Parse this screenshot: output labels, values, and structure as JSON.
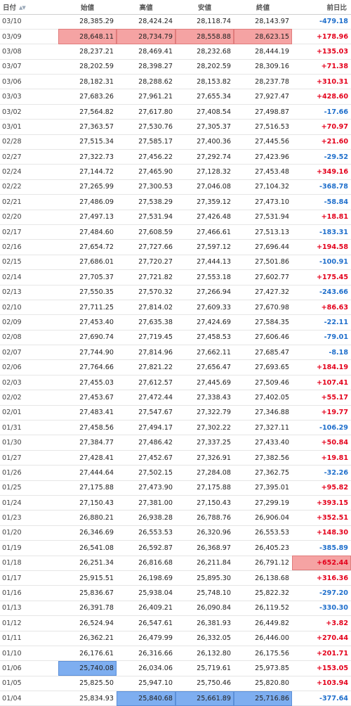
{
  "headers": {
    "date": "日付",
    "open": "始値",
    "high": "高値",
    "low": "安値",
    "close": "終値",
    "change": "前日比"
  },
  "colors": {
    "up": "#e4001b",
    "down": "#1e6ecb",
    "highlight_red": "#f5a3a3",
    "highlight_blue": "#7eaef0"
  },
  "rows": [
    {
      "date": "03/10",
      "open": "28,385.29",
      "high": "28,424.24",
      "low": "28,118.74",
      "close": "28,143.97",
      "change": "-479.18"
    },
    {
      "date": "03/09",
      "open": "28,648.11",
      "high": "28,734.79",
      "low": "28,558.88",
      "close": "28,623.15",
      "change": "+178.96",
      "hl": {
        "open": "red",
        "high": "red",
        "low": "red",
        "close": "red"
      }
    },
    {
      "date": "03/08",
      "open": "28,237.21",
      "high": "28,469.41",
      "low": "28,232.68",
      "close": "28,444.19",
      "change": "+135.03"
    },
    {
      "date": "03/07",
      "open": "28,202.59",
      "high": "28,398.27",
      "low": "28,202.59",
      "close": "28,309.16",
      "change": "+71.38"
    },
    {
      "date": "03/06",
      "open": "28,182.31",
      "high": "28,288.62",
      "low": "28,153.82",
      "close": "28,237.78",
      "change": "+310.31"
    },
    {
      "date": "03/03",
      "open": "27,683.26",
      "high": "27,961.21",
      "low": "27,655.34",
      "close": "27,927.47",
      "change": "+428.60"
    },
    {
      "date": "03/02",
      "open": "27,564.82",
      "high": "27,617.80",
      "low": "27,408.54",
      "close": "27,498.87",
      "change": "-17.66"
    },
    {
      "date": "03/01",
      "open": "27,363.57",
      "high": "27,530.76",
      "low": "27,305.37",
      "close": "27,516.53",
      "change": "+70.97"
    },
    {
      "date": "02/28",
      "open": "27,515.34",
      "high": "27,585.17",
      "low": "27,400.36",
      "close": "27,445.56",
      "change": "+21.60"
    },
    {
      "date": "02/27",
      "open": "27,322.73",
      "high": "27,456.22",
      "low": "27,292.74",
      "close": "27,423.96",
      "change": "-29.52"
    },
    {
      "date": "02/24",
      "open": "27,144.72",
      "high": "27,465.90",
      "low": "27,128.32",
      "close": "27,453.48",
      "change": "+349.16"
    },
    {
      "date": "02/22",
      "open": "27,265.99",
      "high": "27,300.53",
      "low": "27,046.08",
      "close": "27,104.32",
      "change": "-368.78"
    },
    {
      "date": "02/21",
      "open": "27,486.09",
      "high": "27,538.29",
      "low": "27,359.12",
      "close": "27,473.10",
      "change": "-58.84"
    },
    {
      "date": "02/20",
      "open": "27,497.13",
      "high": "27,531.94",
      "low": "27,426.48",
      "close": "27,531.94",
      "change": "+18.81"
    },
    {
      "date": "02/17",
      "open": "27,484.60",
      "high": "27,608.59",
      "low": "27,466.61",
      "close": "27,513.13",
      "change": "-183.31"
    },
    {
      "date": "02/16",
      "open": "27,654.72",
      "high": "27,727.66",
      "low": "27,597.12",
      "close": "27,696.44",
      "change": "+194.58"
    },
    {
      "date": "02/15",
      "open": "27,686.01",
      "high": "27,720.27",
      "low": "27,444.13",
      "close": "27,501.86",
      "change": "-100.91"
    },
    {
      "date": "02/14",
      "open": "27,705.37",
      "high": "27,721.82",
      "low": "27,553.18",
      "close": "27,602.77",
      "change": "+175.45"
    },
    {
      "date": "02/13",
      "open": "27,550.35",
      "high": "27,570.32",
      "low": "27,266.94",
      "close": "27,427.32",
      "change": "-243.66"
    },
    {
      "date": "02/10",
      "open": "27,711.25",
      "high": "27,814.02",
      "low": "27,609.33",
      "close": "27,670.98",
      "change": "+86.63"
    },
    {
      "date": "02/09",
      "open": "27,453.40",
      "high": "27,635.38",
      "low": "27,424.69",
      "close": "27,584.35",
      "change": "-22.11"
    },
    {
      "date": "02/08",
      "open": "27,690.74",
      "high": "27,719.45",
      "low": "27,458.53",
      "close": "27,606.46",
      "change": "-79.01"
    },
    {
      "date": "02/07",
      "open": "27,744.90",
      "high": "27,814.96",
      "low": "27,662.11",
      "close": "27,685.47",
      "change": "-8.18"
    },
    {
      "date": "02/06",
      "open": "27,764.66",
      "high": "27,821.22",
      "low": "27,656.47",
      "close": "27,693.65",
      "change": "+184.19"
    },
    {
      "date": "02/03",
      "open": "27,455.03",
      "high": "27,612.57",
      "low": "27,445.69",
      "close": "27,509.46",
      "change": "+107.41"
    },
    {
      "date": "02/02",
      "open": "27,453.67",
      "high": "27,472.44",
      "low": "27,338.43",
      "close": "27,402.05",
      "change": "+55.17"
    },
    {
      "date": "02/01",
      "open": "27,483.41",
      "high": "27,547.67",
      "low": "27,322.79",
      "close": "27,346.88",
      "change": "+19.77"
    },
    {
      "date": "01/31",
      "open": "27,458.56",
      "high": "27,494.17",
      "low": "27,302.22",
      "close": "27,327.11",
      "change": "-106.29"
    },
    {
      "date": "01/30",
      "open": "27,384.77",
      "high": "27,486.42",
      "low": "27,337.25",
      "close": "27,433.40",
      "change": "+50.84"
    },
    {
      "date": "01/27",
      "open": "27,428.41",
      "high": "27,452.67",
      "low": "27,326.91",
      "close": "27,382.56",
      "change": "+19.81"
    },
    {
      "date": "01/26",
      "open": "27,444.64",
      "high": "27,502.15",
      "low": "27,284.08",
      "close": "27,362.75",
      "change": "-32.26"
    },
    {
      "date": "01/25",
      "open": "27,175.88",
      "high": "27,473.90",
      "low": "27,175.88",
      "close": "27,395.01",
      "change": "+95.82"
    },
    {
      "date": "01/24",
      "open": "27,150.43",
      "high": "27,381.00",
      "low": "27,150.43",
      "close": "27,299.19",
      "change": "+393.15"
    },
    {
      "date": "01/23",
      "open": "26,880.21",
      "high": "26,938.28",
      "low": "26,788.76",
      "close": "26,906.04",
      "change": "+352.51"
    },
    {
      "date": "01/20",
      "open": "26,346.69",
      "high": "26,553.53",
      "low": "26,320.96",
      "close": "26,553.53",
      "change": "+148.30"
    },
    {
      "date": "01/19",
      "open": "26,541.08",
      "high": "26,592.87",
      "low": "26,368.97",
      "close": "26,405.23",
      "change": "-385.89"
    },
    {
      "date": "01/18",
      "open": "26,251.34",
      "high": "26,816.68",
      "low": "26,211.84",
      "close": "26,791.12",
      "change": "+652.44",
      "hl": {
        "change": "red"
      }
    },
    {
      "date": "01/17",
      "open": "25,915.51",
      "high": "26,198.69",
      "low": "25,895.30",
      "close": "26,138.68",
      "change": "+316.36"
    },
    {
      "date": "01/16",
      "open": "25,836.67",
      "high": "25,938.04",
      "low": "25,748.10",
      "close": "25,822.32",
      "change": "-297.20"
    },
    {
      "date": "01/13",
      "open": "26,391.78",
      "high": "26,409.21",
      "low": "26,090.84",
      "close": "26,119.52",
      "change": "-330.30"
    },
    {
      "date": "01/12",
      "open": "26,524.94",
      "high": "26,547.61",
      "low": "26,381.93",
      "close": "26,449.82",
      "change": "+3.82"
    },
    {
      "date": "01/11",
      "open": "26,362.21",
      "high": "26,479.99",
      "low": "26,332.05",
      "close": "26,446.00",
      "change": "+270.44"
    },
    {
      "date": "01/10",
      "open": "26,176.61",
      "high": "26,316.66",
      "low": "26,132.80",
      "close": "26,175.56",
      "change": "+201.71"
    },
    {
      "date": "01/06",
      "open": "25,740.08",
      "high": "26,034.06",
      "low": "25,719.61",
      "close": "25,973.85",
      "change": "+153.05",
      "hl": {
        "open": "blue"
      }
    },
    {
      "date": "01/05",
      "open": "25,825.50",
      "high": "25,947.10",
      "low": "25,750.46",
      "close": "25,820.80",
      "change": "+103.94"
    },
    {
      "date": "01/04",
      "open": "25,834.93",
      "high": "25,840.68",
      "low": "25,661.89",
      "close": "25,716.86",
      "change": "-377.64",
      "hl": {
        "high": "blue",
        "low": "blue",
        "close": "blue"
      }
    }
  ]
}
